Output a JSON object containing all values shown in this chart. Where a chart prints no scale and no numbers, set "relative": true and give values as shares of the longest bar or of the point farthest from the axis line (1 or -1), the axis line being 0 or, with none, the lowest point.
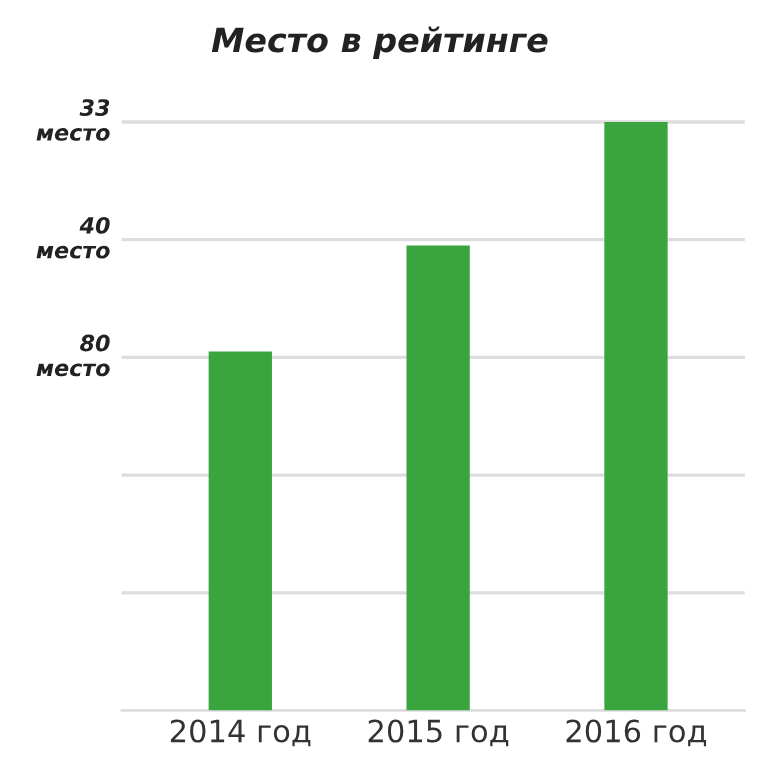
{
  "chart_data": {
    "type": "bar",
    "title": "Место в рейтинге",
    "categories": [
      "2014 год",
      "2015 год",
      "2016 год"
    ],
    "values": [
      0.61,
      0.79,
      1
    ],
    "relative": true,
    "color": "#3aa53f",
    "annotations": [
      "80\nместо",
      "40\nместо",
      "33\nместо"
    ],
    "grid": "y"
  }
}
